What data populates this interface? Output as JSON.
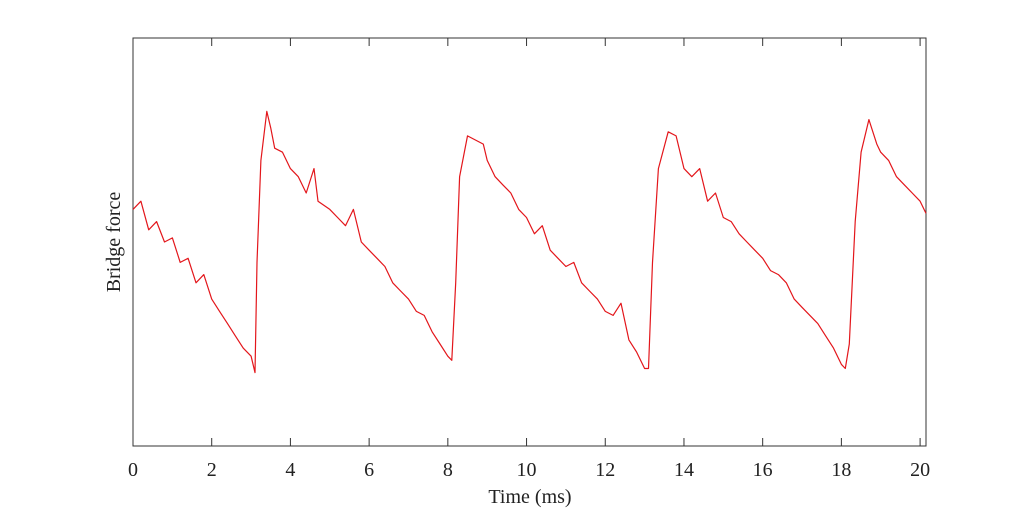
{
  "chart_data": {
    "type": "line",
    "x_label": "Time (ms)",
    "y_label": "Bridge force",
    "xlim": [
      0,
      20.15
    ],
    "ylim": [
      0,
      1
    ],
    "xticks": [
      0,
      2,
      4,
      6,
      8,
      10,
      12,
      14,
      16,
      18,
      20
    ],
    "series": [
      {
        "color": "#e3161b",
        "x": [
          0,
          0.2,
          0.4,
          0.6,
          0.8,
          1.0,
          1.2,
          1.4,
          1.6,
          1.8,
          2.0,
          2.2,
          2.4,
          2.6,
          2.8,
          3.0,
          3.1,
          3.15,
          3.25,
          3.4,
          3.5,
          3.6,
          3.8,
          4.0,
          4.2,
          4.4,
          4.6,
          4.7,
          5.0,
          5.2,
          5.4,
          5.6,
          5.8,
          6.0,
          6.2,
          6.4,
          6.6,
          6.8,
          7.0,
          7.2,
          7.4,
          7.6,
          7.8,
          8.0,
          8.1,
          8.2,
          8.3,
          8.5,
          8.7,
          8.9,
          9.0,
          9.2,
          9.4,
          9.6,
          9.8,
          10.0,
          10.2,
          10.4,
          10.6,
          10.8,
          11.0,
          11.2,
          11.4,
          11.6,
          11.8,
          12.0,
          12.2,
          12.4,
          12.6,
          12.8,
          13.0,
          13.1,
          13.2,
          13.35,
          13.6,
          13.8,
          14.0,
          14.2,
          14.4,
          14.6,
          14.8,
          15.0,
          15.2,
          15.4,
          15.6,
          15.8,
          16.0,
          16.2,
          16.4,
          16.6,
          16.8,
          17.0,
          17.2,
          17.4,
          17.6,
          17.8,
          18.0,
          18.1,
          18.2,
          18.35,
          18.5,
          18.7,
          18.9,
          19.0,
          19.2,
          19.4,
          19.6,
          19.8,
          20.0,
          20.15
        ],
        "values": [
          0.58,
          0.6,
          0.53,
          0.55,
          0.5,
          0.51,
          0.45,
          0.46,
          0.4,
          0.42,
          0.36,
          0.33,
          0.3,
          0.27,
          0.24,
          0.22,
          0.18,
          0.45,
          0.7,
          0.82,
          0.78,
          0.73,
          0.72,
          0.68,
          0.66,
          0.62,
          0.68,
          0.6,
          0.58,
          0.56,
          0.54,
          0.58,
          0.5,
          0.48,
          0.46,
          0.44,
          0.4,
          0.38,
          0.36,
          0.33,
          0.32,
          0.28,
          0.25,
          0.22,
          0.21,
          0.4,
          0.66,
          0.76,
          0.75,
          0.74,
          0.7,
          0.66,
          0.64,
          0.62,
          0.58,
          0.56,
          0.52,
          0.54,
          0.48,
          0.46,
          0.44,
          0.45,
          0.4,
          0.38,
          0.36,
          0.33,
          0.32,
          0.35,
          0.26,
          0.23,
          0.19,
          0.19,
          0.45,
          0.68,
          0.77,
          0.76,
          0.68,
          0.66,
          0.68,
          0.6,
          0.62,
          0.56,
          0.55,
          0.52,
          0.5,
          0.48,
          0.46,
          0.43,
          0.42,
          0.4,
          0.36,
          0.34,
          0.32,
          0.3,
          0.27,
          0.24,
          0.2,
          0.19,
          0.25,
          0.55,
          0.72,
          0.8,
          0.74,
          0.72,
          0.7,
          0.66,
          0.64,
          0.62,
          0.6,
          0.57
        ]
      }
    ]
  }
}
